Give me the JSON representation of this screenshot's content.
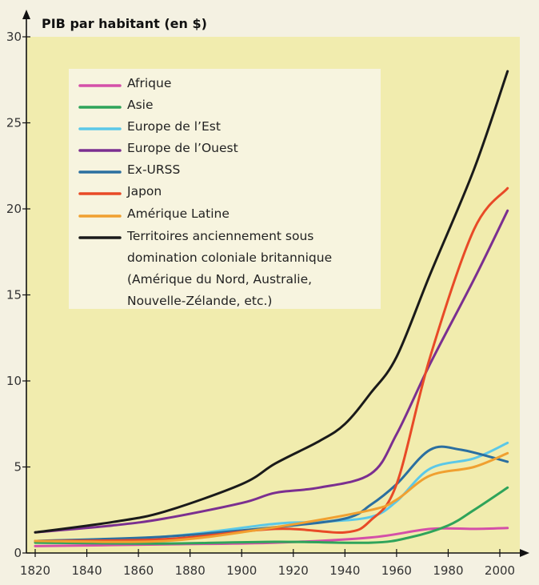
{
  "chart_data": {
    "type": "line",
    "title": "",
    "xlabel": "",
    "ylabel": "PIB par habitant (en $)",
    "xlim": [
      1820,
      2003
    ],
    "ylim": [
      0,
      30
    ],
    "xticks": [
      1820,
      1840,
      1860,
      1880,
      1900,
      1920,
      1940,
      1960,
      1980,
      2000
    ],
    "yticks": [
      0,
      5,
      10,
      15,
      20,
      25,
      30
    ],
    "grid": false,
    "legend_position": "top-left",
    "series": [
      {
        "name": "Afrique",
        "color": "#d44fa8",
        "points": [
          [
            1820,
            0.4
          ],
          [
            1870,
            0.5
          ],
          [
            1913,
            0.6
          ],
          [
            1950,
            0.9
          ],
          [
            1973,
            1.4
          ],
          [
            1990,
            1.4
          ],
          [
            2003,
            1.45
          ]
        ]
      },
      {
        "name": "Asie",
        "color": "#2fa45a",
        "points": [
          [
            1820,
            0.6
          ],
          [
            1870,
            0.55
          ],
          [
            1913,
            0.65
          ],
          [
            1950,
            0.6
          ],
          [
            1965,
            0.9
          ],
          [
            1980,
            1.6
          ],
          [
            1990,
            2.5
          ],
          [
            2003,
            3.8
          ]
        ]
      },
      {
        "name": "Europe de l’Est",
        "color": "#5bc8e8",
        "points": [
          [
            1820,
            0.7
          ],
          [
            1870,
            0.95
          ],
          [
            1913,
            1.7
          ],
          [
            1930,
            1.8
          ],
          [
            1950,
            2.1
          ],
          [
            1960,
            3.0
          ],
          [
            1973,
            4.9
          ],
          [
            1990,
            5.5
          ],
          [
            2003,
            6.4
          ]
        ]
      },
      {
        "name": "Europe de l’Ouest",
        "color": "#7b2f90",
        "points": [
          [
            1820,
            1.2
          ],
          [
            1850,
            1.6
          ],
          [
            1870,
            2.0
          ],
          [
            1900,
            2.9
          ],
          [
            1913,
            3.5
          ],
          [
            1930,
            3.8
          ],
          [
            1950,
            4.6
          ],
          [
            1960,
            6.9
          ],
          [
            1973,
            11.0
          ],
          [
            1990,
            15.9
          ],
          [
            2003,
            19.9
          ]
        ]
      },
      {
        "name": "Ex-URSS",
        "color": "#2b6fa0",
        "points": [
          [
            1820,
            0.7
          ],
          [
            1870,
            0.95
          ],
          [
            1913,
            1.5
          ],
          [
            1940,
            2.0
          ],
          [
            1950,
            2.8
          ],
          [
            1960,
            4.0
          ],
          [
            1973,
            6.0
          ],
          [
            1985,
            6.0
          ],
          [
            2003,
            5.3
          ]
        ]
      },
      {
        "name": "Japon",
        "color": "#e84a27",
        "points": [
          [
            1820,
            0.7
          ],
          [
            1870,
            0.8
          ],
          [
            1913,
            1.4
          ],
          [
            1940,
            1.2
          ],
          [
            1950,
            1.9
          ],
          [
            1960,
            4.0
          ],
          [
            1973,
            11.4
          ],
          [
            1990,
            18.8
          ],
          [
            2003,
            21.2
          ]
        ]
      },
      {
        "name": "Amérique Latine",
        "color": "#f0a030",
        "points": [
          [
            1820,
            0.7
          ],
          [
            1870,
            0.7
          ],
          [
            1913,
            1.5
          ],
          [
            1950,
            2.5
          ],
          [
            1960,
            3.1
          ],
          [
            1973,
            4.5
          ],
          [
            1990,
            5.0
          ],
          [
            2003,
            5.8
          ]
        ]
      },
      {
        "name": "Territoires anciennement sous domination coloniale britannique (Amérique du Nord, Australie, Nouvelle-Zélande, etc.)",
        "color": "#1a1a1a",
        "points": [
          [
            1820,
            1.2
          ],
          [
            1850,
            1.8
          ],
          [
            1870,
            2.4
          ],
          [
            1900,
            4.0
          ],
          [
            1913,
            5.2
          ],
          [
            1930,
            6.5
          ],
          [
            1940,
            7.5
          ],
          [
            1950,
            9.3
          ],
          [
            1960,
            11.4
          ],
          [
            1973,
            16.2
          ],
          [
            1990,
            22.3
          ],
          [
            2003,
            28.0
          ]
        ]
      }
    ],
    "legend_lines": [
      "Afrique",
      "Asie",
      "Europe de l’Est",
      "Europe de l’Ouest",
      "Ex-URSS",
      "Japon",
      "Amérique Latine",
      "Territoires anciennement sous",
      "domination coloniale britannique",
      "(Amérique du Nord, Australie,",
      "Nouvelle-Zélande, etc.)"
    ]
  }
}
